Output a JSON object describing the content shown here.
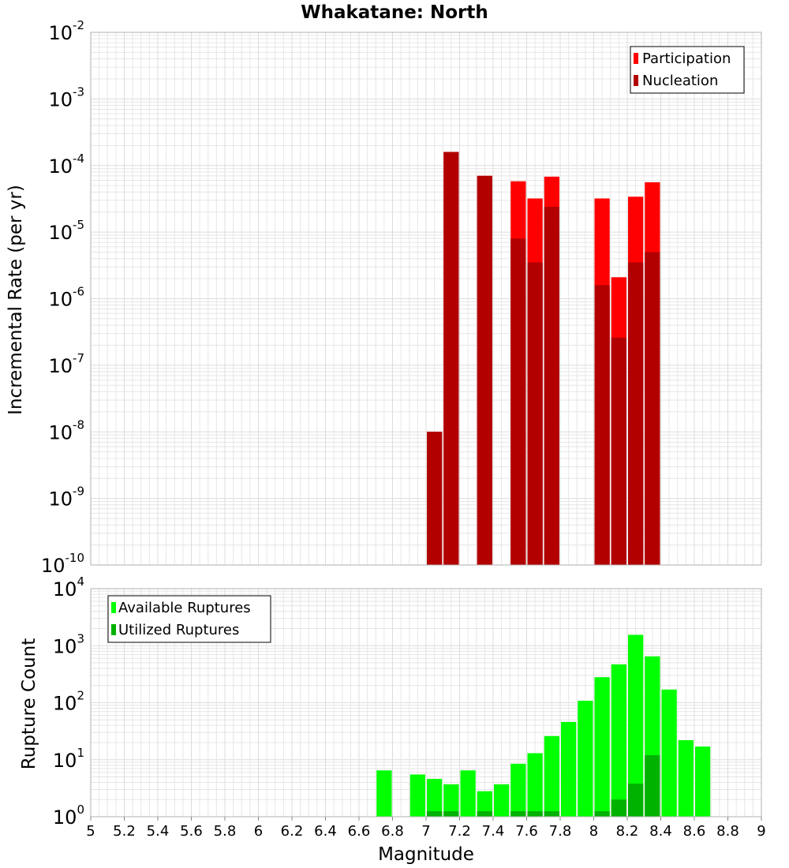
{
  "chart_data": [
    {
      "type": "bar",
      "title": "Whakatane: North",
      "xlabel": "",
      "ylabel": "Incremental Rate (per yr)",
      "yscale": "log",
      "xlim": [
        5,
        9
      ],
      "ylim": [
        1e-10,
        0.01
      ],
      "y_ticks": [
        {
          "base": "10",
          "exp": "-10"
        },
        {
          "base": "10",
          "exp": "-9"
        },
        {
          "base": "10",
          "exp": "-8"
        },
        {
          "base": "10",
          "exp": "-7"
        },
        {
          "base": "10",
          "exp": "-6"
        },
        {
          "base": "10",
          "exp": "-5"
        },
        {
          "base": "10",
          "exp": "-4"
        },
        {
          "base": "10",
          "exp": "-3"
        },
        {
          "base": "10",
          "exp": "-2"
        }
      ],
      "grid": true,
      "legend_position": "top-right",
      "bin_width": 0.1,
      "x": [
        7.05,
        7.15,
        7.35,
        7.55,
        7.65,
        7.75,
        8.05,
        8.15,
        8.25,
        8.35
      ],
      "series": [
        {
          "name": "Participation",
          "color": "#ff0000",
          "values": [
            1e-08,
            0.00016,
            7e-05,
            5.8e-05,
            3.2e-05,
            6.8e-05,
            3.2e-05,
            2.1e-06,
            3.4e-05,
            5.6e-05
          ]
        },
        {
          "name": "Nucleation",
          "color": "#b20000",
          "values": [
            1e-08,
            0.00016,
            7e-05,
            8e-06,
            3.5e-06,
            2.4e-05,
            1.6e-06,
            2.6e-07,
            3.5e-06,
            5e-06
          ]
        }
      ]
    },
    {
      "type": "bar",
      "title": "",
      "xlabel": "Magnitude",
      "ylabel": "Rupture Count",
      "yscale": "log",
      "xlim": [
        5,
        9
      ],
      "ylim": [
        1,
        10000
      ],
      "x_ticks": [
        "5",
        "5.2",
        "5.4",
        "5.6",
        "5.8",
        "6",
        "6.2",
        "6.4",
        "6.6",
        "6.8",
        "7",
        "7.2",
        "7.4",
        "7.6",
        "7.8",
        "8",
        "8.2",
        "8.4",
        "8.6",
        "8.8",
        "9"
      ],
      "y_ticks": [
        {
          "base": "10",
          "exp": "0"
        },
        {
          "base": "10",
          "exp": "1"
        },
        {
          "base": "10",
          "exp": "2"
        },
        {
          "base": "10",
          "exp": "3"
        },
        {
          "base": "10",
          "exp": "4"
        }
      ],
      "grid": true,
      "legend_position": "top-left",
      "bin_width": 0.1,
      "series": [
        {
          "name": "Available Ruptures",
          "color": "#00ff00",
          "x": [
            6.75,
            6.95,
            7.05,
            7.15,
            7.25,
            7.35,
            7.45,
            7.55,
            7.65,
            7.75,
            7.85,
            7.95,
            8.05,
            8.15,
            8.25,
            8.35,
            8.45,
            8.55,
            8.65
          ],
          "values": [
            6.5,
            5.5,
            4.6,
            3.7,
            6.5,
            2.8,
            3.7,
            8.5,
            13,
            26,
            46,
            108,
            280,
            470,
            1550,
            650,
            170,
            22,
            17
          ]
        },
        {
          "name": "Utilized Ruptures",
          "color": "#00b200",
          "x": [
            7.05,
            7.15,
            7.35,
            7.55,
            7.65,
            7.75,
            8.05,
            8.15,
            8.25,
            8.35
          ],
          "values": [
            1,
            1,
            1,
            1,
            1,
            1,
            1,
            2,
            3.8,
            12
          ]
        }
      ]
    }
  ]
}
